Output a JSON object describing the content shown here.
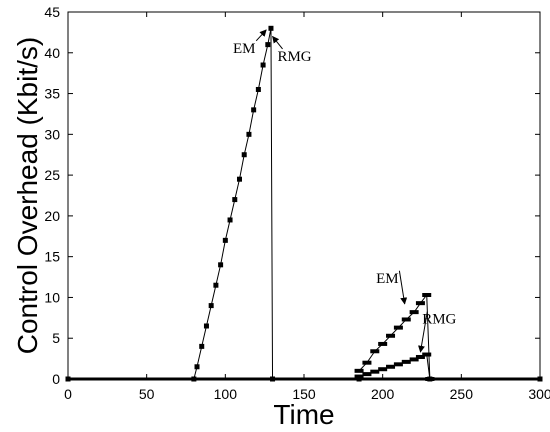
{
  "chart_data": {
    "type": "line",
    "title": "",
    "xlabel": "Time",
    "ylabel": "Control Overhead (Kbit/s)",
    "xlim": [
      0,
      300
    ],
    "ylim": [
      0,
      45
    ],
    "x_ticks": [
      0,
      50,
      100,
      150,
      200,
      250,
      300
    ],
    "y_ticks": [
      0,
      5,
      10,
      15,
      20,
      25,
      30,
      35,
      40,
      45
    ],
    "grid": false,
    "legend": "none",
    "series": [
      {
        "marker": "square",
        "color": "#000000",
        "points": [
          [
            0,
            0
          ],
          [
            80,
            0
          ],
          [
            82,
            1.5
          ],
          [
            85,
            4
          ],
          [
            88,
            6.5
          ],
          [
            91,
            9
          ],
          [
            94,
            11.5
          ],
          [
            97,
            14
          ],
          [
            100,
            17
          ],
          [
            103,
            19.5
          ],
          [
            106,
            22
          ],
          [
            109,
            24.5
          ],
          [
            112,
            27.5
          ],
          [
            115,
            30
          ],
          [
            118,
            33
          ],
          [
            121,
            35.5
          ],
          [
            124,
            38.5
          ],
          [
            127,
            41
          ],
          [
            129,
            43
          ],
          [
            130,
            0
          ],
          [
            185,
            0
          ],
          [
            230,
            0
          ],
          [
            300,
            0
          ]
        ]
      },
      {
        "marker": "dash",
        "color": "#000000",
        "points": [
          [
            185,
            1
          ],
          [
            190,
            2
          ],
          [
            195,
            3.4
          ],
          [
            200,
            4.3
          ],
          [
            205,
            5.3
          ],
          [
            210,
            6.3
          ],
          [
            215,
            7.3
          ],
          [
            220,
            8.2
          ],
          [
            224,
            9.3
          ],
          [
            228,
            10.3
          ],
          [
            230,
            0
          ]
        ]
      },
      {
        "marker": "dash",
        "color": "#000000",
        "points": [
          [
            185,
            0.3
          ],
          [
            190,
            0.6
          ],
          [
            195,
            0.9
          ],
          [
            200,
            1.2
          ],
          [
            205,
            1.5
          ],
          [
            210,
            1.8
          ],
          [
            215,
            2.1
          ],
          [
            220,
            2.4
          ],
          [
            224,
            2.7
          ],
          [
            228,
            3
          ],
          [
            230,
            0
          ]
        ]
      }
    ],
    "annotations": [
      {
        "text": "EM",
        "x": 112,
        "y": 40,
        "arrow_to": [
          126,
          42.8
        ]
      },
      {
        "text": "RMG",
        "x": 144,
        "y": 39,
        "arrow_to": [
          130,
          42
        ]
      },
      {
        "text": "EM",
        "x": 203,
        "y": 11.8,
        "arrow_to": [
          214,
          9.2
        ]
      },
      {
        "text": "RMG",
        "x": 236,
        "y": 6.8,
        "arrow_to": [
          224,
          3.3
        ]
      }
    ]
  }
}
